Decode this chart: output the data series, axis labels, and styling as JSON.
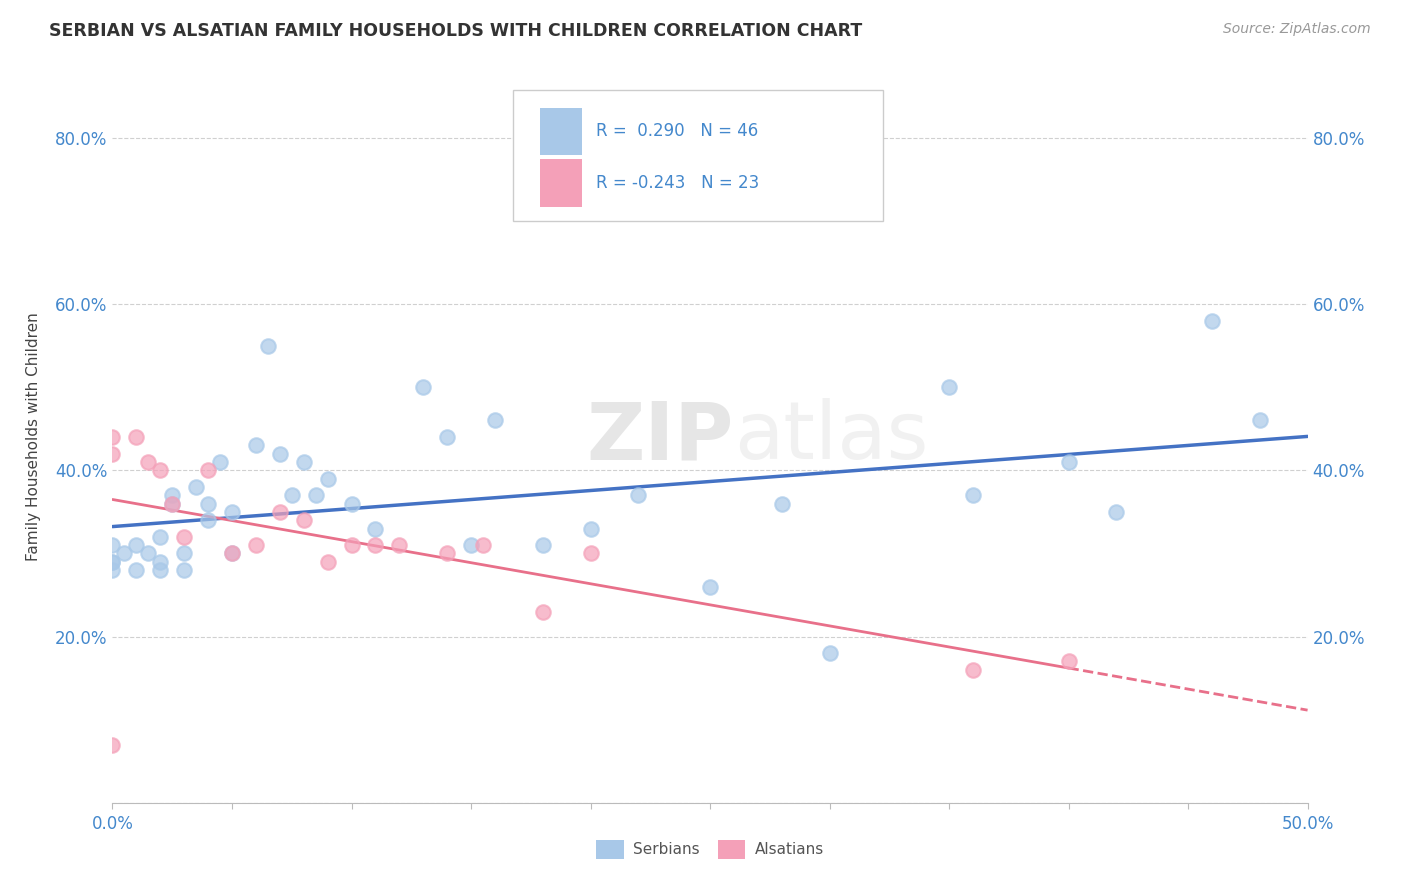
{
  "title": "SERBIAN VS ALSATIAN FAMILY HOUSEHOLDS WITH CHILDREN CORRELATION CHART",
  "source": "Source: ZipAtlas.com",
  "ylabel": "Family Households with Children",
  "xlim": [
    0.0,
    0.5
  ],
  "ylim": [
    0.0,
    0.88
  ],
  "serbian_color": "#a8c8e8",
  "alsatian_color": "#f4a0b8",
  "serbian_line_color": "#4472c4",
  "alsatian_line_color": "#e8708a",
  "legend_serbian_r": "0.290",
  "legend_serbian_n": "46",
  "legend_alsatian_r": "-0.243",
  "legend_alsatian_n": "23",
  "watermark_zip": "ZIP",
  "watermark_atlas": "atlas",
  "serbian_x": [
    0.0,
    0.0,
    0.0,
    0.0,
    0.005,
    0.01,
    0.01,
    0.015,
    0.02,
    0.02,
    0.02,
    0.025,
    0.025,
    0.03,
    0.03,
    0.035,
    0.04,
    0.04,
    0.045,
    0.05,
    0.05,
    0.06,
    0.065,
    0.07,
    0.075,
    0.08,
    0.085,
    0.09,
    0.1,
    0.11,
    0.13,
    0.14,
    0.15,
    0.16,
    0.18,
    0.2,
    0.22,
    0.25,
    0.28,
    0.3,
    0.35,
    0.36,
    0.4,
    0.42,
    0.46,
    0.48
  ],
  "serbian_y": [
    0.29,
    0.31,
    0.29,
    0.28,
    0.3,
    0.31,
    0.28,
    0.3,
    0.32,
    0.29,
    0.28,
    0.37,
    0.36,
    0.3,
    0.28,
    0.38,
    0.36,
    0.34,
    0.41,
    0.35,
    0.3,
    0.43,
    0.55,
    0.42,
    0.37,
    0.41,
    0.37,
    0.39,
    0.36,
    0.33,
    0.5,
    0.44,
    0.31,
    0.46,
    0.31,
    0.33,
    0.37,
    0.26,
    0.36,
    0.18,
    0.5,
    0.37,
    0.41,
    0.35,
    0.58,
    0.46
  ],
  "alsatian_x": [
    0.0,
    0.0,
    0.0,
    0.01,
    0.015,
    0.02,
    0.025,
    0.03,
    0.04,
    0.05,
    0.06,
    0.07,
    0.08,
    0.09,
    0.1,
    0.11,
    0.12,
    0.14,
    0.155,
    0.18,
    0.2,
    0.36,
    0.4
  ],
  "alsatian_y": [
    0.44,
    0.42,
    0.07,
    0.44,
    0.41,
    0.4,
    0.36,
    0.32,
    0.4,
    0.3,
    0.31,
    0.35,
    0.34,
    0.29,
    0.31,
    0.31,
    0.31,
    0.3,
    0.31,
    0.23,
    0.3,
    0.16,
    0.17
  ]
}
